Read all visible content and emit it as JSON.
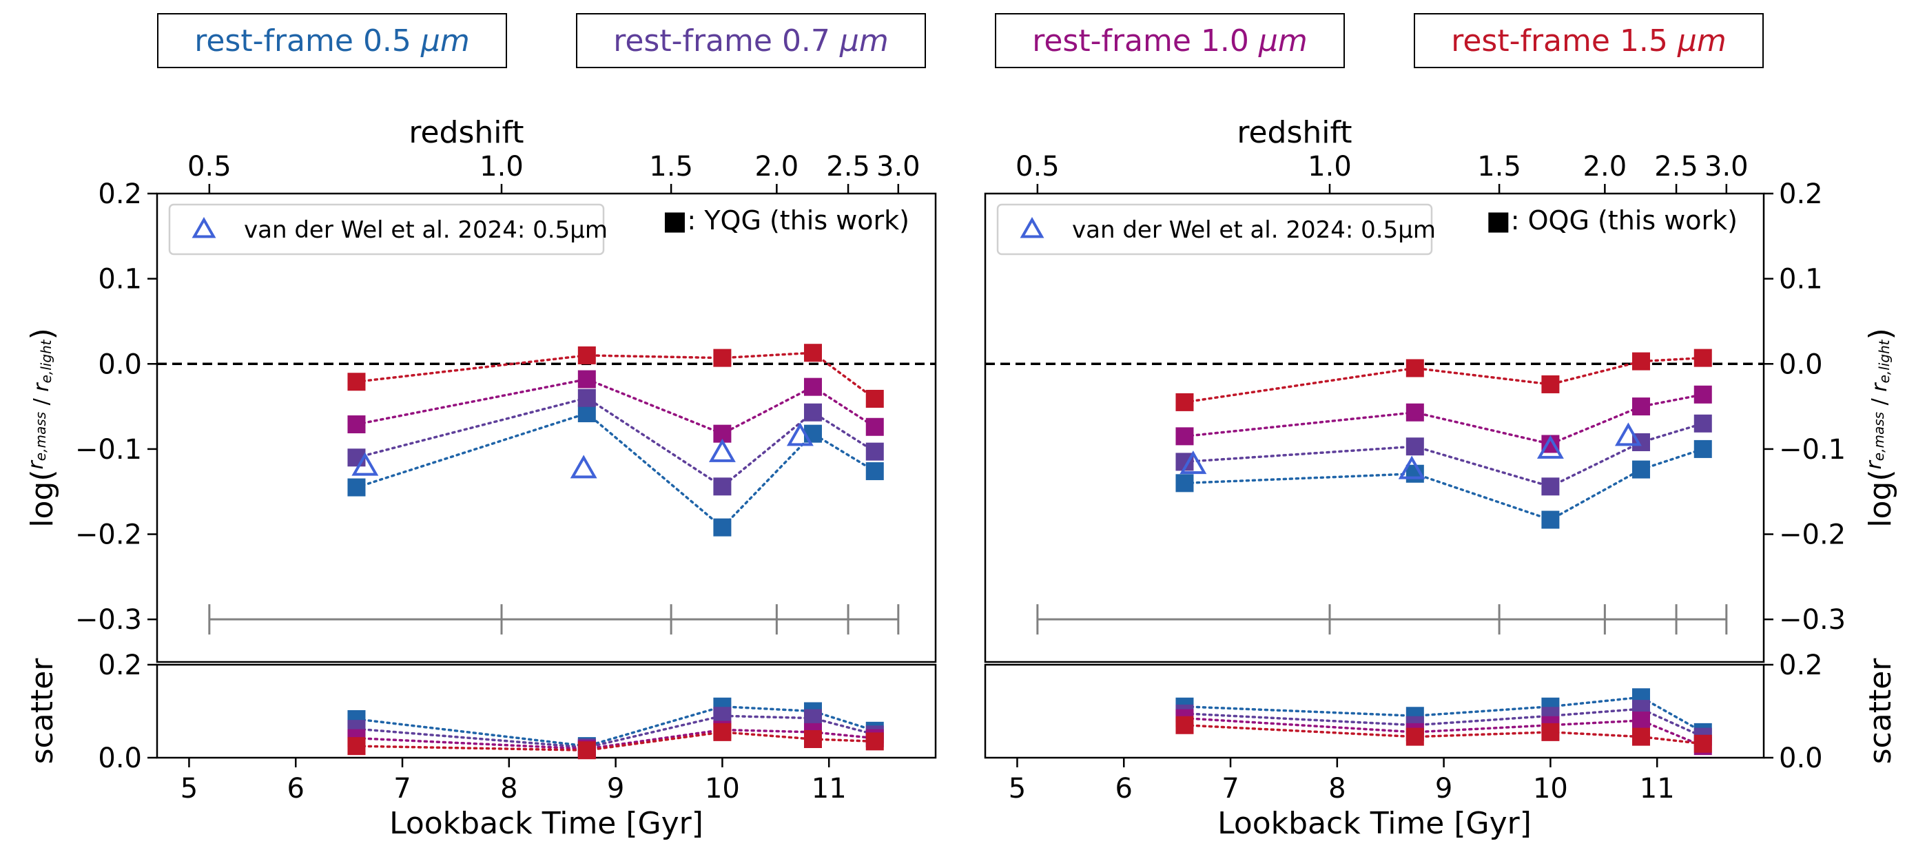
{
  "colors": {
    "b05": "#1f64a8",
    "b07": "#5e3f9a",
    "b10": "#95117f",
    "b15": "#c01628",
    "literature": "#4062d8",
    "redshift_bar": "#808080"
  },
  "legend_bands": [
    {
      "prefix": "rest-frame 0.5 ",
      "unit": "μm",
      "color": "#1f64a8"
    },
    {
      "prefix": "rest-frame 0.7 ",
      "unit": "μm",
      "color": "#5e3f9a"
    },
    {
      "prefix": "rest-frame 1.0 ",
      "unit": "μm",
      "color": "#95117f"
    },
    {
      "prefix": "rest-frame 1.5 ",
      "unit": "μm",
      "color": "#c01628"
    }
  ],
  "chart_data": [
    {
      "type": "scatter",
      "panel": "left",
      "top_axis_label": "redshift",
      "top_ticks": [
        "0.5",
        "1.0",
        "1.5",
        "2.0",
        "2.5",
        "3.0"
      ],
      "top_tick_lookback": [
        5.19,
        7.93,
        9.52,
        10.51,
        11.18,
        11.65
      ],
      "xlabel": "Lookback Time [Gyr]",
      "xlim": [
        4.7,
        12.0
      ],
      "xticks": [
        5,
        6,
        7,
        8,
        9,
        10,
        11
      ],
      "ylabel": "log(r_e,mass / r_e,light)",
      "ylim": [
        -0.35,
        0.2
      ],
      "yticks": [
        0.2,
        0.1,
        0.0,
        -0.1,
        -0.2,
        -0.3
      ],
      "ytick_labels": [
        "0.2",
        "0.1",
        "0.0",
        "−0.1",
        "−0.2",
        "−0.3"
      ],
      "zero_line": 0.0,
      "redshift_bar_y": -0.3,
      "legend_text": "van der Wel et al. 2024: 0.5μm",
      "sample_text": "■: YQG (this work)",
      "x": [
        6.57,
        8.73,
        10.0,
        10.85,
        11.43
      ],
      "series": [
        {
          "band": "0.5μm",
          "color": "#1f64a8",
          "values": [
            -0.145,
            -0.058,
            -0.192,
            -0.082,
            -0.126
          ]
        },
        {
          "band": "0.7μm",
          "color": "#5e3f9a",
          "values": [
            -0.11,
            -0.04,
            -0.144,
            -0.057,
            -0.103
          ]
        },
        {
          "band": "1.0μm",
          "color": "#95117f",
          "values": [
            -0.071,
            -0.018,
            -0.082,
            -0.027,
            -0.074
          ]
        },
        {
          "band": "1.5μm",
          "color": "#c01628",
          "values": [
            -0.021,
            0.01,
            0.007,
            0.013,
            -0.041
          ]
        }
      ],
      "literature": {
        "x": [
          6.65,
          8.7,
          10.0,
          10.73
        ],
        "values": [
          -0.12,
          -0.123,
          -0.104,
          -0.085
        ]
      },
      "scatter_panel": {
        "ylabel": "scatter",
        "ylim": [
          0.0,
          0.2
        ],
        "yticks": [
          0.0,
          0.2
        ],
        "ytick_labels": [
          "0.0",
          "0.2"
        ],
        "series": [
          {
            "band": "0.5μm",
            "color": "#1f64a8",
            "values": [
              0.083,
              0.025,
              0.11,
              0.1,
              0.058
            ]
          },
          {
            "band": "0.7μm",
            "color": "#5e3f9a",
            "values": [
              0.062,
              0.022,
              0.09,
              0.085,
              0.05
            ]
          },
          {
            "band": "1.0μm",
            "color": "#95117f",
            "values": [
              0.042,
              0.019,
              0.06,
              0.055,
              0.042
            ]
          },
          {
            "band": "1.5μm",
            "color": "#c01628",
            "values": [
              0.025,
              0.016,
              0.055,
              0.04,
              0.035
            ]
          }
        ]
      }
    },
    {
      "type": "scatter",
      "panel": "right",
      "top_axis_label": "redshift",
      "top_ticks": [
        "0.5",
        "1.0",
        "1.5",
        "2.0",
        "2.5",
        "3.0"
      ],
      "top_tick_lookback": [
        5.19,
        7.93,
        9.52,
        10.51,
        11.18,
        11.65
      ],
      "xlabel": "Lookback Time [Gyr]",
      "xlim": [
        4.7,
        12.0
      ],
      "xticks": [
        5,
        6,
        7,
        8,
        9,
        10,
        11
      ],
      "ylabel": "log(r_e,mass / r_e,light)",
      "ylim": [
        -0.35,
        0.2
      ],
      "yticks": [
        0.2,
        0.1,
        0.0,
        -0.1,
        -0.2,
        -0.3
      ],
      "ytick_labels": [
        "0.2",
        "0.1",
        "0.0",
        "−0.1",
        "−0.2",
        "−0.3"
      ],
      "zero_line": 0.0,
      "redshift_bar_y": -0.3,
      "legend_text": "van der Wel et al. 2024: 0.5μm",
      "sample_text": "■: OQG (this work)",
      "x": [
        6.57,
        8.73,
        10.0,
        10.85,
        11.43
      ],
      "series": [
        {
          "band": "0.5μm",
          "color": "#1f64a8",
          "values": [
            -0.14,
            -0.129,
            -0.183,
            -0.124,
            -0.1
          ]
        },
        {
          "band": "0.7μm",
          "color": "#5e3f9a",
          "values": [
            -0.115,
            -0.097,
            -0.144,
            -0.092,
            -0.07
          ]
        },
        {
          "band": "1.0μm",
          "color": "#95117f",
          "values": [
            -0.085,
            -0.057,
            -0.094,
            -0.05,
            -0.036
          ]
        },
        {
          "band": "1.5μm",
          "color": "#c01628",
          "values": [
            -0.045,
            -0.005,
            -0.024,
            0.003,
            0.007
          ]
        }
      ],
      "literature": {
        "x": [
          6.65,
          8.7,
          10.0,
          10.73
        ],
        "values": [
          -0.118,
          -0.124,
          -0.1,
          -0.085
        ]
      },
      "scatter_panel": {
        "ylabel": "scatter",
        "ylim": [
          0.0,
          0.2
        ],
        "yticks": [
          0.0,
          0.2
        ],
        "ytick_labels": [
          "0.0",
          "0.2"
        ],
        "series": [
          {
            "band": "0.5μm",
            "color": "#1f64a8",
            "values": [
              0.11,
              0.09,
              0.11,
              0.13,
              0.055
            ]
          },
          {
            "band": "0.7μm",
            "color": "#5e3f9a",
            "values": [
              0.095,
              0.07,
              0.09,
              0.105,
              0.045
            ]
          },
          {
            "band": "1.0μm",
            "color": "#95117f",
            "values": [
              0.085,
              0.055,
              0.07,
              0.08,
              0.025
            ]
          },
          {
            "band": "1.5μm",
            "color": "#c01628",
            "values": [
              0.07,
              0.045,
              0.055,
              0.045,
              0.03
            ]
          }
        ]
      }
    }
  ]
}
